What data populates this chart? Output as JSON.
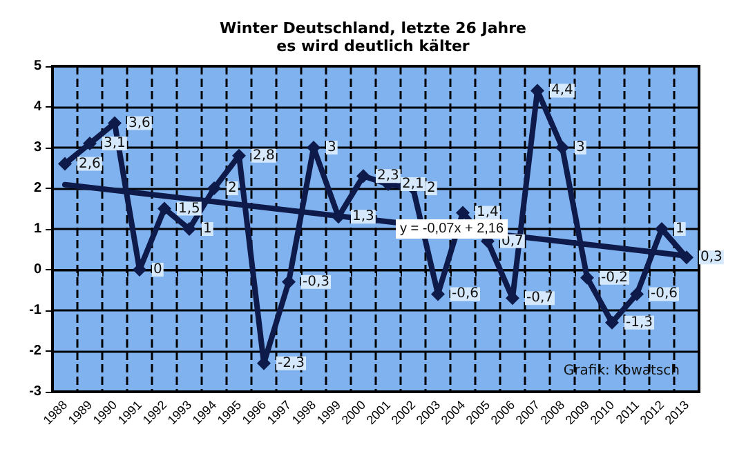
{
  "chart_data": {
    "type": "line",
    "title": "Winter Deutschland, letzte 26 Jahre",
    "subtitle": "es wird deutlich kälter",
    "categories": [
      "1988",
      "1989",
      "1990",
      "1991",
      "1992",
      "1993",
      "1994",
      "1995",
      "1996",
      "1997",
      "1998",
      "1999",
      "2000",
      "2001",
      "2002",
      "2003",
      "2004",
      "2005",
      "2006",
      "2007",
      "2008",
      "2009",
      "2010",
      "2011",
      "2012",
      "2013"
    ],
    "series": [
      {
        "color": "#0d1a4a",
        "marker": "diamond",
        "values": [
          2.6,
          3.1,
          3.6,
          0,
          1.5,
          1,
          2,
          2.8,
          -2.3,
          -0.3,
          3,
          1.3,
          2.3,
          2.1,
          2,
          -0.6,
          1.4,
          0.7,
          -0.7,
          4.4,
          3,
          -0.2,
          -1.3,
          -0.6,
          1,
          0.3
        ],
        "value_labels": [
          "2,6",
          "3,1",
          "3,6",
          "0",
          "1,5",
          "1",
          "2",
          "2,8",
          "-2,3",
          "-0,3",
          "3",
          "1,3",
          "2,3",
          "2,1",
          "2",
          "-0,6",
          "1,4",
          "0,7",
          "-0,7",
          "4,4",
          "3",
          "-0,2",
          "-1,3",
          "-0,6",
          "1",
          "0,3"
        ]
      },
      {
        "type": "line",
        "color": "#0d1a4a",
        "marker": "none",
        "values": [
          2.09,
          null,
          null,
          null,
          null,
          null,
          null,
          null,
          null,
          null,
          null,
          null,
          null,
          null,
          null,
          null,
          null,
          null,
          null,
          null,
          null,
          null,
          null,
          null,
          null,
          0.34
        ]
      }
    ],
    "ylim": [
      -3,
      5
    ],
    "yticks": [
      -3,
      -2,
      -1,
      0,
      1,
      2,
      3,
      4,
      5
    ],
    "grid": true,
    "annotations": [
      {
        "text": "y = -0,07x + 2,16",
        "x": "2001",
        "y": 1.0
      },
      "Grafik: Kowatsch"
    ]
  }
}
